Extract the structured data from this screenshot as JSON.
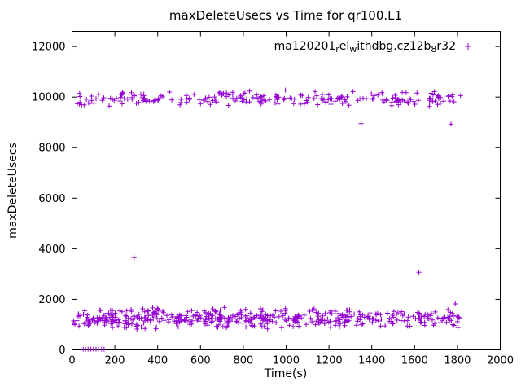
{
  "chart_data": {
    "type": "scatter",
    "title": "maxDeleteUsecs vs Time for qr100.L1",
    "xlabel": "Time(s)",
    "ylabel": "maxDeleteUsecs",
    "xlim": [
      0,
      2000
    ],
    "ylim": [
      0,
      12600
    ],
    "xticks": [
      0,
      200,
      400,
      600,
      800,
      1000,
      1200,
      1400,
      1600,
      1800,
      2000
    ],
    "yticks": [
      0,
      2000,
      4000,
      6000,
      8000,
      10000,
      12000
    ],
    "grid": false,
    "marker": "plus",
    "marker_color": "#9400d3",
    "legend": {
      "position": "top-right-inside",
      "series_name": "ma120201_rel_withdbg.cz12b_8r32",
      "segments": [
        {
          "text": "ma120201",
          "sub": false
        },
        {
          "text": "r",
          "sub": true
        },
        {
          "text": "el",
          "sub": false
        },
        {
          "text": "w",
          "sub": true
        },
        {
          "text": "ithdbg.cz12b",
          "sub": false
        },
        {
          "text": "8",
          "sub": true
        },
        {
          "text": "r32",
          "sub": false
        }
      ]
    },
    "series": [
      {
        "name": "ma120201_rel_withdbg.cz12b_8r32",
        "seed": 1337,
        "bands": [
          {
            "label": "upper-band",
            "x_min": 5,
            "x_max": 1815,
            "count": 240,
            "y_mean": 9950,
            "y_half_range": 350
          },
          {
            "label": "lower-band",
            "x_min": 5,
            "x_max": 1815,
            "count": 500,
            "y_mean": 1250,
            "y_half_range": 450
          }
        ],
        "zero_points_x": [
          42,
          52,
          63,
          75,
          88,
          100,
          112,
          124,
          138,
          150
        ],
        "zero_points_y": 30,
        "outliers": [
          [
            290,
            3650
          ],
          [
            1350,
            8950
          ],
          [
            1620,
            3070
          ],
          [
            1770,
            8930
          ],
          [
            1790,
            1820
          ]
        ]
      }
    ]
  }
}
